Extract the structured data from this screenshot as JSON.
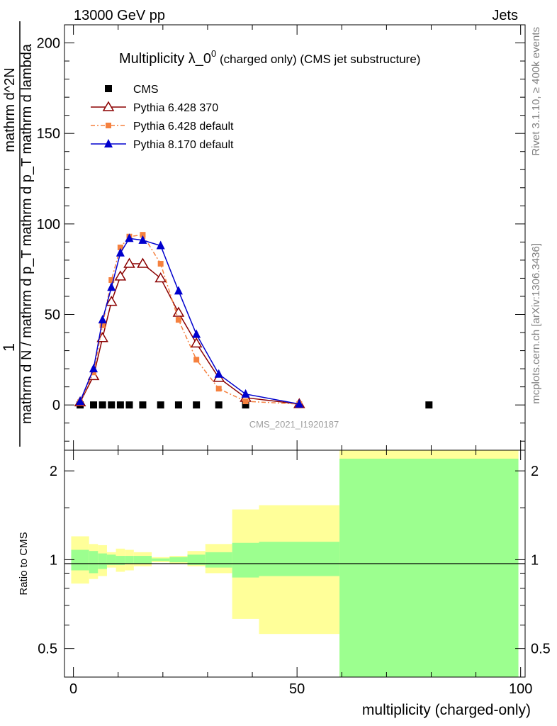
{
  "header": {
    "energy": "13000 GeV pp",
    "process": "Jets"
  },
  "side_labels": {
    "rivet": "Rivet 3.1.10, ≥ 400k events",
    "mcplots": "mcplots.cern.ch [arXiv:1306.3436]"
  },
  "watermark": "CMS_2021_I1920187",
  "chart_data": [
    {
      "type": "line",
      "panel": "main",
      "title": "Multiplicity λ_0",
      "title_superscript": "0",
      "title_suffix": " (charged only) (CMS jet substructure)",
      "ylabel_top": "1",
      "ylabel_bottom": "mathrm d N / mathrm d p_T mathrm d p_T mathrm d lambda",
      "ylabel_numerator": "mathrm d^2N",
      "ylim": [
        -25,
        210
      ],
      "yticks": [
        0,
        50,
        100,
        150,
        200
      ],
      "xlim": [
        -2,
        101
      ],
      "legend_position": "top-left",
      "series": [
        {
          "name": "CMS",
          "color": "#000000",
          "marker": "square",
          "x": [
            1.5,
            4.5,
            6.5,
            8.5,
            10.5,
            12.5,
            15.5,
            19.5,
            23.5,
            27.5,
            32.5,
            38.5,
            79.5
          ],
          "y": [
            0,
            0,
            0,
            0,
            0,
            0,
            0,
            0,
            0,
            0,
            0,
            0,
            0
          ]
        },
        {
          "name": "Pythia 6.428 370",
          "color": "#8b0000",
          "marker": "open-triangle",
          "x": [
            1.5,
            4.5,
            6.5,
            8.5,
            10.5,
            12.5,
            15.5,
            19.5,
            23.5,
            27.5,
            32.5,
            38.5,
            50.5
          ],
          "y": [
            1.5,
            16,
            37,
            57,
            71,
            78,
            78,
            70,
            51,
            34,
            15,
            4,
            0.5
          ]
        },
        {
          "name": "Pythia 6.428 default",
          "color": "#f5813f",
          "marker": "square-small",
          "x": [
            1.5,
            4.5,
            6.5,
            8.5,
            10.5,
            12.5,
            15.5,
            19.5,
            23.5,
            27.5,
            32.5,
            38.5,
            50.5
          ],
          "y": [
            1.5,
            18,
            44,
            69,
            87,
            93,
            94,
            78,
            47,
            25,
            9,
            2,
            0.5
          ]
        },
        {
          "name": "Pythia 8.170 default",
          "color": "#0000cd",
          "marker": "filled-triangle",
          "x": [
            1.5,
            4.5,
            6.5,
            8.5,
            10.5,
            12.5,
            15.5,
            19.5,
            23.5,
            27.5,
            32.5,
            38.5,
            50.5
          ],
          "y": [
            2,
            20,
            47,
            65,
            84,
            92,
            91,
            88,
            63,
            39,
            17,
            6,
            0.5
          ]
        }
      ]
    },
    {
      "type": "area",
      "panel": "ratio",
      "ylabel": "Ratio to CMS",
      "yscale": "log",
      "ylim": [
        0.4,
        2.35
      ],
      "yticks": [
        0.5,
        1,
        2
      ],
      "xlabel": "multiplicity (charged-only)",
      "xlim": [
        -2,
        101
      ],
      "xticks": [
        0,
        50,
        100
      ],
      "bands": [
        {
          "x0": -0.5,
          "x1": 3.5,
          "stat": [
            0.92,
            1.08
          ],
          "total": [
            0.83,
            1.2
          ]
        },
        {
          "x0": 3.5,
          "x1": 5.5,
          "stat": [
            0.9,
            1.07
          ],
          "total": [
            0.86,
            1.13
          ]
        },
        {
          "x0": 5.5,
          "x1": 7.5,
          "stat": [
            0.93,
            1.05
          ],
          "total": [
            0.88,
            1.12
          ]
        },
        {
          "x0": 7.5,
          "x1": 9.5,
          "stat": [
            0.96,
            1.04
          ],
          "total": [
            0.94,
            1.06
          ]
        },
        {
          "x0": 9.5,
          "x1": 11.5,
          "stat": [
            0.96,
            1.03
          ],
          "total": [
            0.91,
            1.09
          ]
        },
        {
          "x0": 11.5,
          "x1": 13.5,
          "stat": [
            0.97,
            1.03
          ],
          "total": [
            0.92,
            1.08
          ]
        },
        {
          "x0": 13.5,
          "x1": 17.5,
          "stat": [
            0.97,
            1.03
          ],
          "total": [
            0.95,
            1.06
          ]
        },
        {
          "x0": 17.5,
          "x1": 21.5,
          "stat": [
            0.99,
            1.01
          ],
          "total": [
            0.98,
            1.02
          ]
        },
        {
          "x0": 21.5,
          "x1": 25.5,
          "stat": [
            0.98,
            1.02
          ],
          "total": [
            0.97,
            1.03
          ]
        },
        {
          "x0": 25.5,
          "x1": 29.5,
          "stat": [
            0.96,
            1.04
          ],
          "total": [
            0.95,
            1.07
          ]
        },
        {
          "x0": 29.5,
          "x1": 35.5,
          "stat": [
            0.94,
            1.06
          ],
          "total": [
            0.9,
            1.13
          ]
        },
        {
          "x0": 35.5,
          "x1": 41.5,
          "stat": [
            0.87,
            1.14
          ],
          "total": [
            0.63,
            1.48
          ]
        },
        {
          "x0": 41.5,
          "x1": 59.5,
          "stat": [
            0.88,
            1.15
          ],
          "total": [
            0.56,
            1.53
          ]
        },
        {
          "x0": 59.5,
          "x1": 99.5,
          "stat": [
            0.4,
            2.2
          ],
          "total": [
            0.4,
            2.4
          ]
        }
      ],
      "colors": {
        "stat": "#9cff8f",
        "total": "#ffff99",
        "line": "#000000"
      }
    }
  ]
}
